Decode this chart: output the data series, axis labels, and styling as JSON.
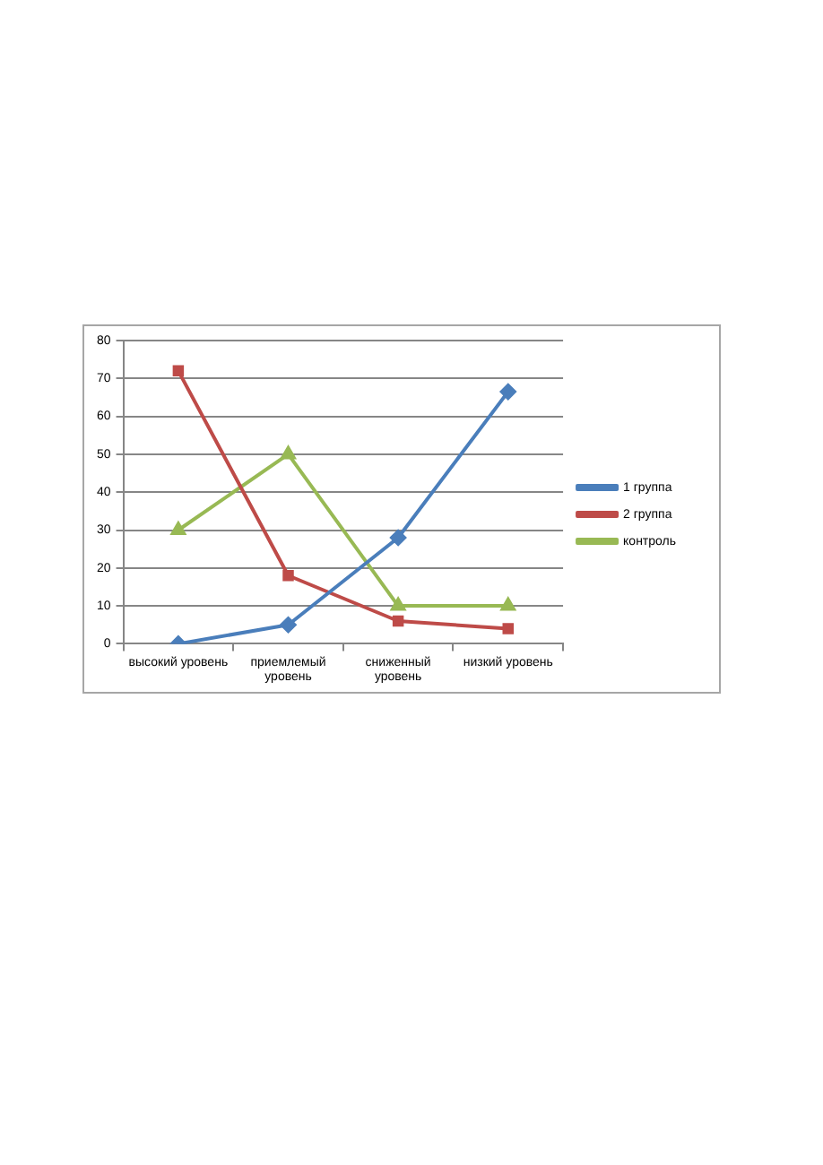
{
  "chart_data": {
    "type": "line",
    "categories": [
      "высокий уровень",
      "приемлемый уровень",
      "сниженный уровень",
      "низкий уровень"
    ],
    "series": [
      {
        "name": "1 группа",
        "color": "#4a7ebb",
        "marker": "diamond",
        "values": [
          0,
          5,
          28,
          66.5
        ]
      },
      {
        "name": "2 группа",
        "color": "#be4b48",
        "marker": "square",
        "values": [
          72,
          18,
          6,
          4
        ]
      },
      {
        "name": "контроль",
        "color": "#98b954",
        "marker": "triangle",
        "values": [
          30,
          50,
          10,
          10
        ]
      }
    ],
    "ylim": [
      0,
      80
    ],
    "yticks": [
      0,
      10,
      20,
      30,
      40,
      50,
      60,
      70,
      80
    ],
    "grid": "y",
    "legend": "right",
    "line_style": "solid"
  }
}
